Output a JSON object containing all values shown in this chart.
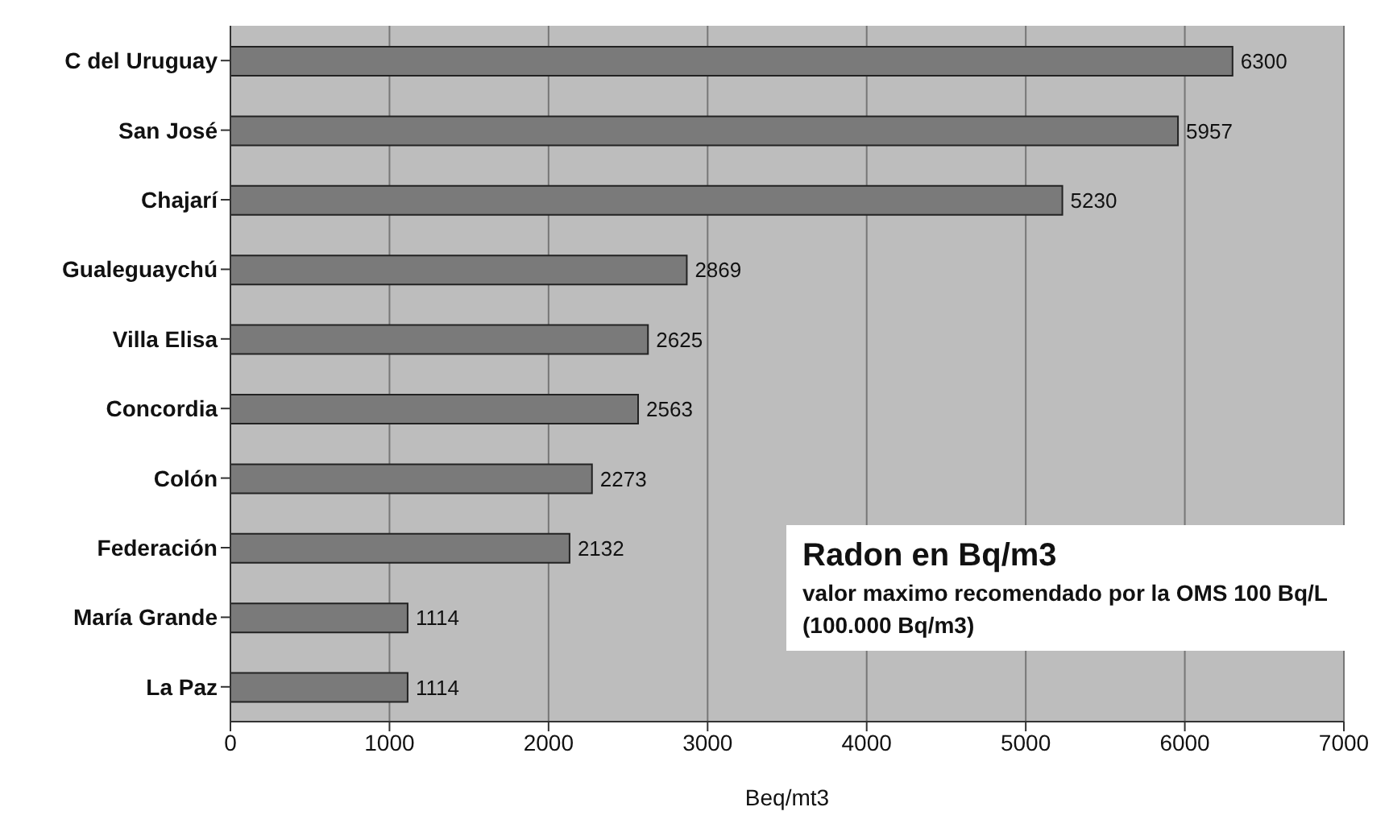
{
  "chart_data": {
    "type": "bar",
    "orientation": "horizontal",
    "categories": [
      "C del Uruguay",
      "San José",
      "Chajarí",
      "Gualeguaychú",
      "Villa Elisa",
      "Concordia",
      "Colón",
      "Federación",
      "María Grande",
      "La Paz"
    ],
    "values": [
      6300,
      5957,
      5230,
      2869,
      2625,
      2563,
      2273,
      2132,
      1114,
      1114
    ],
    "color": "#7a7a7a",
    "data_labels": true,
    "xlim": [
      0,
      7000
    ],
    "xticks": [
      0,
      1000,
      2000,
      3000,
      4000,
      5000,
      6000,
      7000
    ],
    "grid": "x",
    "xlabel": "Beq/mt3",
    "annotations": [
      "Radon  en Bq/m3",
      "valor maximo recomendado por la OMS 100 Bq/L (100.000 Bq/m3)"
    ]
  }
}
